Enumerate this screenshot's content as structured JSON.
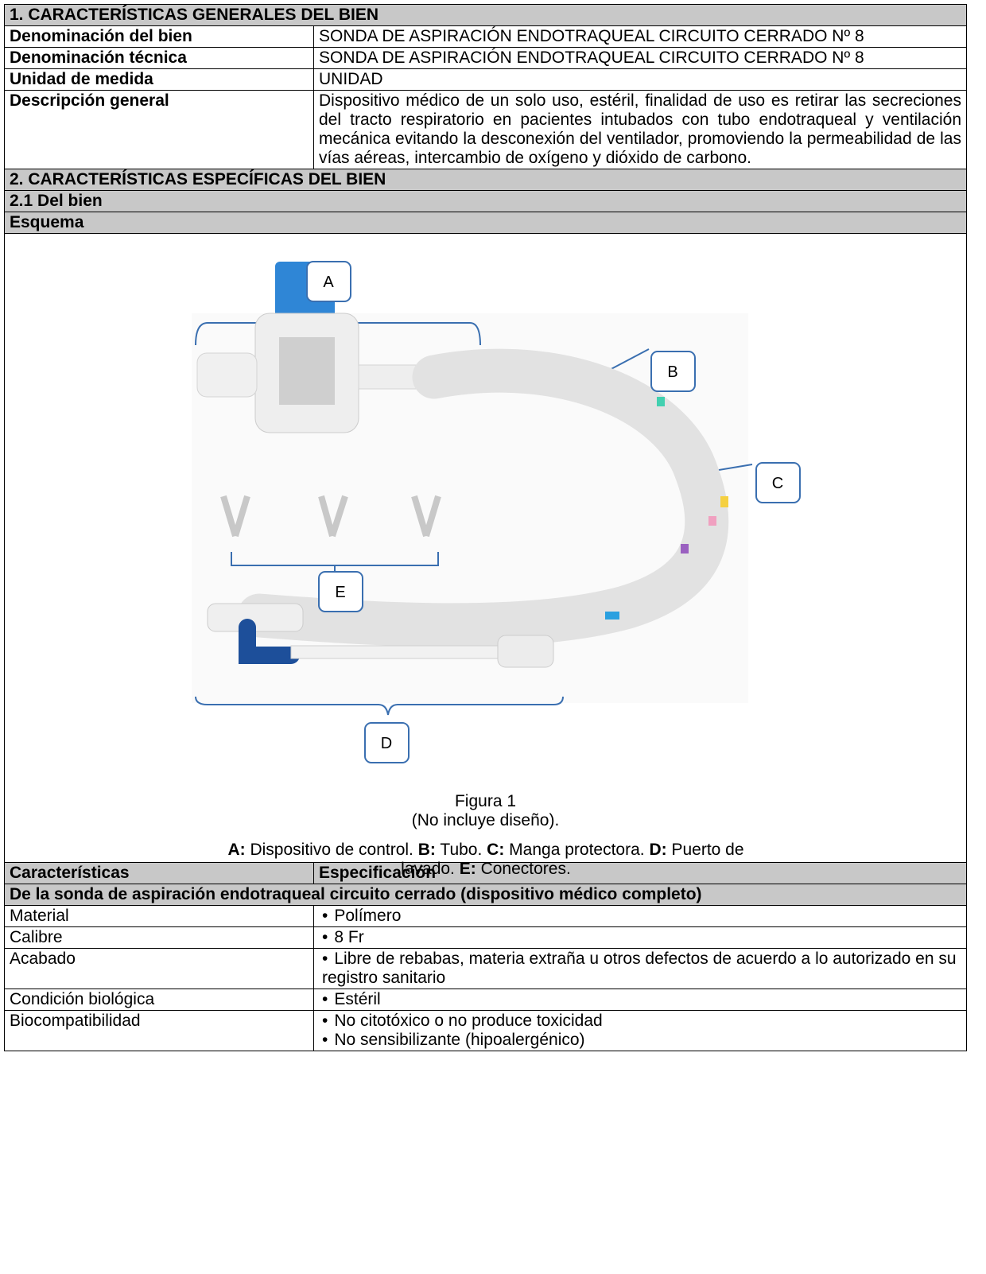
{
  "section1": {
    "title": "1. CARACTERÍSTICAS GENERALES DEL BIEN",
    "rows": [
      {
        "label": "Denominación del bien",
        "value": "SONDA DE ASPIRACIÓN ENDOTRAQUEAL CIRCUITO CERRADO Nº 8"
      },
      {
        "label": "Denominación técnica",
        "value": "SONDA DE ASPIRACIÓN ENDOTRAQUEAL CIRCUITO CERRADO Nº 8"
      },
      {
        "label": "Unidad de medida",
        "value": "UNIDAD"
      },
      {
        "label": "Descripción general",
        "value": "Dispositivo médico de un solo uso, estéril, finalidad de uso es retirar las secreciones del tracto respiratorio en pacientes intubados con tubo endotraqueal y ventilación mecánica evitando la desconexión del ventilador, promoviendo la permeabilidad de las vías aéreas, intercambio de oxígeno y dióxido de carbono."
      }
    ]
  },
  "section2": {
    "title": "2. CARACTERÍSTICAS ESPECÍFICAS DEL BIEN",
    "subtitle": "2.1 Del bien",
    "scheme_title": "Esquema",
    "figure": {
      "labels": [
        "A",
        "B",
        "C",
        "D",
        "E"
      ],
      "caption": "Figura 1",
      "note": "(No incluye diseño).",
      "legend": [
        {
          "key": "A:",
          "text": "Dispositivo de control."
        },
        {
          "key": "B:",
          "text": "Tubo."
        },
        {
          "key": "C:",
          "text": "Manga protectora."
        },
        {
          "key": "D:",
          "text": "Puerto de lavado."
        },
        {
          "key": "E:",
          "text": "Conectores."
        }
      ]
    }
  },
  "spec_table": {
    "headers": [
      "Características",
      "Especificación"
    ],
    "group": "De la sonda de aspiración endotraqueal circuito cerrado (dispositivo médico completo)",
    "rows": [
      {
        "label": "Material",
        "items": [
          "Polímero"
        ]
      },
      {
        "label": "Calibre",
        "items": [
          "8 Fr"
        ]
      },
      {
        "label": "Acabado",
        "items": [
          "Libre de rebabas, materia extraña u otros defectos de acuerdo a lo autorizado en su registro sanitario"
        ]
      },
      {
        "label": "Condición biológica",
        "items": [
          "Estéril"
        ]
      },
      {
        "label": "Biocompatibilidad",
        "items": [
          "No citotóxico o no produce toxicidad",
          "No sensibilizante (hipoalergénico)"
        ]
      }
    ]
  }
}
